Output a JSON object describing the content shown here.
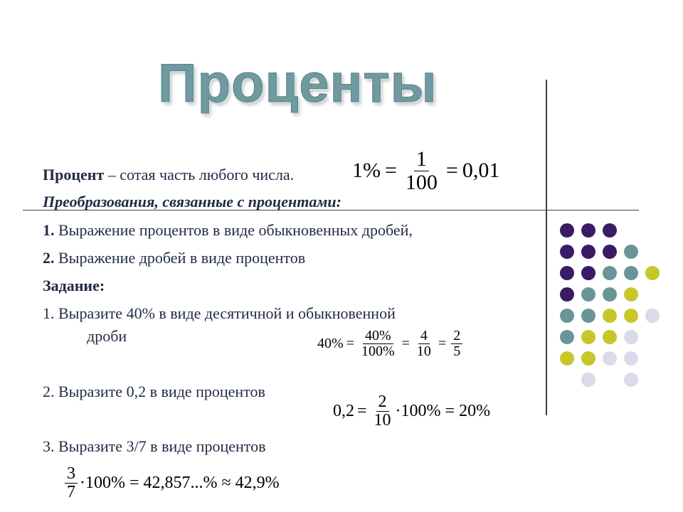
{
  "title": "Проценты",
  "definition": {
    "term": "Процент",
    "rest": " – сотая часть любого числа.",
    "formula": {
      "left": "1%",
      "eq1": "=",
      "num": "1",
      "den": "100",
      "eq2": "=",
      "right": "0,01"
    }
  },
  "subheading": "Преобразования, связанные с процентами:",
  "items": [
    {
      "num": "1.",
      "text": " Выражение процентов в виде обыкновенных дробей,"
    },
    {
      "num": "2.",
      "text": " Выражение дробей в виде процентов"
    }
  ],
  "task_label": "Задание:",
  "tasks": [
    {
      "text": "1. Выразите 40% в виде десятичной и обыкновенной",
      "cont": "дроби"
    },
    {
      "text": "2. Выразите 0,2  в виде процентов"
    },
    {
      "text": "3. Выразите 3/7 в виде процентов"
    }
  ],
  "answer1": {
    "lhs": "40%",
    "f1n": "40%",
    "f1d": "100%",
    "f2n": "4",
    "f2d": "10",
    "f3n": "2",
    "f3d": "5",
    "eq": "="
  },
  "answer2": {
    "lhs": "0,2",
    "eq": "=",
    "fn": "2",
    "fd": "10",
    "rest": "·100% = 20%"
  },
  "answer3": {
    "fn": "3",
    "fd": "7",
    "rest": "·100% = 42,857...% ≈ 42,9%"
  },
  "colors": {
    "purple": "#3b1a66",
    "teal": "#6a9598",
    "yellow": "#c7c72a",
    "lavender": "#dcdaea"
  },
  "dot_grid": [
    [
      "purple",
      "purple",
      "purple",
      null,
      null
    ],
    [
      "purple",
      "purple",
      "purple",
      "teal",
      null
    ],
    [
      "purple",
      "purple",
      "teal",
      "teal",
      "yellow"
    ],
    [
      "purple",
      "teal",
      "teal",
      "yellow",
      null
    ],
    [
      "teal",
      "teal",
      "yellow",
      "yellow",
      "lavender"
    ],
    [
      "teal",
      "yellow",
      "yellow",
      "lavender",
      null
    ],
    [
      "yellow",
      "yellow",
      "lavender",
      "lavender",
      null
    ],
    [
      null,
      "lavender",
      null,
      "lavender",
      null
    ]
  ]
}
